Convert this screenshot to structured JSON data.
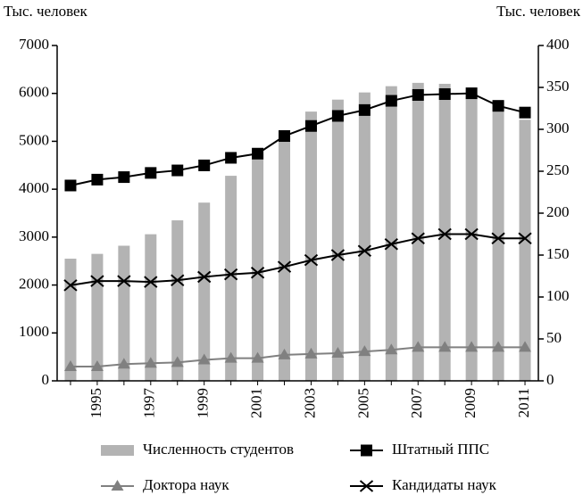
{
  "chart_data": {
    "type": "bar",
    "ylabel": "Тыс. человек",
    "y2label": "Тыс. человек",
    "categories": [
      null,
      "1995",
      null,
      "1997",
      null,
      "1999",
      null,
      "2001",
      null,
      "2003",
      null,
      "2005",
      null,
      "2007",
      null,
      "2009",
      null,
      "2011"
    ],
    "ylim": [
      0,
      7000
    ],
    "yticks": [
      0,
      1000,
      2000,
      3000,
      4000,
      5000,
      6000,
      7000
    ],
    "y2lim": [
      0,
      400
    ],
    "y2ticks": [
      0,
      50,
      100,
      150,
      200,
      250,
      300,
      350,
      400
    ],
    "series": [
      {
        "name": "Численность студентов",
        "type": "bar",
        "color": "#b3b3b3",
        "values": [
          2550,
          2650,
          2820,
          3060,
          3350,
          3720,
          4280,
          4740,
          5120,
          5620,
          5870,
          6020,
          6150,
          6220,
          6200,
          5990,
          5850,
          5450
        ]
      },
      {
        "name": "Штатный ППС",
        "type": "line",
        "axis": "y2",
        "color": "#000000",
        "marker": "square",
        "values": [
          233,
          240,
          243,
          248,
          251,
          257,
          266,
          271,
          292,
          304,
          316,
          323,
          334,
          341,
          342,
          343,
          328,
          320
        ]
      },
      {
        "name": "Доктора наук",
        "type": "line",
        "axis": "y2",
        "color": "#808080",
        "marker": "triangle",
        "values": [
          17,
          17,
          20,
          21,
          22,
          25,
          27,
          27,
          31,
          32,
          33,
          35,
          37,
          40,
          40,
          40,
          40,
          40
        ]
      },
      {
        "name": "Кандидаты наук",
        "type": "line",
        "axis": "y2",
        "color": "#000000",
        "marker": "x",
        "values": [
          114,
          119,
          119,
          118,
          120,
          124,
          127,
          129,
          136,
          144,
          150,
          155,
          163,
          170,
          175,
          175,
          170,
          170
        ]
      }
    ]
  }
}
